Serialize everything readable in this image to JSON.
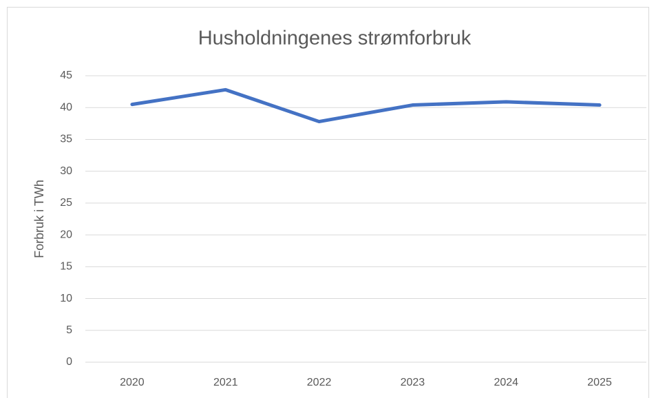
{
  "chart_data": {
    "type": "line",
    "title": "Husholdningenes strømforbruk",
    "y_label": "Forbruk i TWh",
    "categories": [
      "2020",
      "2021",
      "2022",
      "2023",
      "2024",
      "2025"
    ],
    "values": [
      40.5,
      42.8,
      37.8,
      40.4,
      40.9,
      40.4
    ],
    "color": "#4472c4",
    "ylim": [
      0,
      45
    ],
    "yticks": [
      0,
      5,
      10,
      15,
      20,
      25,
      30,
      35,
      40,
      45
    ],
    "grid": true
  }
}
